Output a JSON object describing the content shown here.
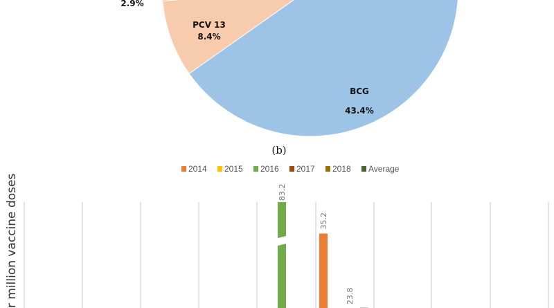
{
  "chart_data": [
    {
      "type": "pie",
      "slices": [
        {
          "label": "BCG",
          "value": 43.4,
          "value_label": "43.4%",
          "color": "#9dc3e6"
        },
        {
          "label": "PCV 13",
          "value": 8.4,
          "value_label": "8.4%",
          "color": "#f8cbad"
        },
        {
          "label": "",
          "value": 2.9,
          "value_label": "2.9%",
          "color": "#c9c9c9"
        }
      ],
      "caption": "(b)"
    },
    {
      "type": "bar",
      "ylabel": "r million vaccine doses",
      "legend": [
        {
          "name": "2014",
          "color": "#ed7d31"
        },
        {
          "name": "2015",
          "color": "#ffc000"
        },
        {
          "name": "2016",
          "color": "#70ad47"
        },
        {
          "name": "2017",
          "color": "#9e480e"
        },
        {
          "name": "2018",
          "color": "#997300"
        },
        {
          "name": "Average",
          "color": "#43682b"
        }
      ],
      "legend_position": "top",
      "grid": "vertical",
      "bars": [
        {
          "series": "2016",
          "value": 83.2,
          "label": "83.2",
          "axis_break": true
        },
        {
          "series": "2014",
          "value": 35.2,
          "label": "35.2"
        },
        {
          "series": "",
          "value": 23.8,
          "label": "23.8"
        }
      ]
    }
  ]
}
